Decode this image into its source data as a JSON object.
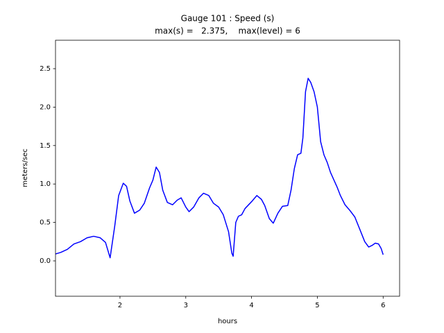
{
  "chart_data": {
    "type": "line",
    "title": [
      "Gauge 101 : Speed (s)",
      "max(s) =   2.375,    max(level) = 6"
    ],
    "xlabel": "hours",
    "ylabel": "meters/sec",
    "x": [
      1.02,
      1.1,
      1.2,
      1.3,
      1.4,
      1.5,
      1.6,
      1.7,
      1.78,
      1.85,
      1.92,
      1.98,
      2.05,
      2.1,
      2.15,
      2.22,
      2.3,
      2.37,
      2.45,
      2.5,
      2.55,
      2.6,
      2.65,
      2.72,
      2.8,
      2.87,
      2.93,
      3.0,
      3.05,
      3.12,
      3.2,
      3.27,
      3.35,
      3.42,
      3.5,
      3.57,
      3.65,
      3.7,
      3.72,
      3.76,
      3.8,
      3.85,
      3.9,
      4.0,
      4.08,
      4.15,
      4.2,
      4.27,
      4.33,
      4.4,
      4.47,
      4.55,
      4.6,
      4.65,
      4.7,
      4.75,
      4.78,
      4.82,
      4.86,
      4.9,
      4.95,
      5.0,
      5.05,
      5.1,
      5.15,
      5.2,
      5.3,
      5.35,
      5.42,
      5.5,
      5.57,
      5.65,
      5.72,
      5.78,
      5.83,
      5.88,
      5.93,
      5.97,
      6.0
    ],
    "series": [
      {
        "name": "s",
        "color": "#0000ff",
        "values": [
          0.09,
          0.11,
          0.15,
          0.22,
          0.25,
          0.3,
          0.32,
          0.3,
          0.24,
          0.04,
          0.45,
          0.85,
          1.01,
          0.97,
          0.78,
          0.62,
          0.66,
          0.75,
          0.95,
          1.05,
          1.22,
          1.15,
          0.92,
          0.76,
          0.73,
          0.79,
          0.82,
          0.7,
          0.64,
          0.7,
          0.82,
          0.88,
          0.85,
          0.75,
          0.7,
          0.6,
          0.38,
          0.1,
          0.06,
          0.5,
          0.58,
          0.6,
          0.68,
          0.77,
          0.85,
          0.8,
          0.72,
          0.55,
          0.49,
          0.62,
          0.71,
          0.72,
          0.92,
          1.2,
          1.38,
          1.4,
          1.6,
          2.2,
          2.375,
          2.32,
          2.2,
          2.0,
          1.55,
          1.38,
          1.28,
          1.15,
          0.96,
          0.85,
          0.73,
          0.65,
          0.57,
          0.4,
          0.25,
          0.18,
          0.2,
          0.23,
          0.22,
          0.16,
          0.08
        ]
      }
    ],
    "xlim": [
      1.02,
      6.25
    ],
    "ylim": [
      -0.46,
      2.87
    ],
    "xticks": [
      2,
      3,
      4,
      5,
      6
    ],
    "yticks": [
      {
        "value": 0,
        "label": "0.0"
      },
      0.5,
      {
        "value": 1,
        "label": "1.0"
      },
      1.5,
      {
        "value": 2,
        "label": "2.0"
      },
      2.5
    ],
    "grid": false
  }
}
